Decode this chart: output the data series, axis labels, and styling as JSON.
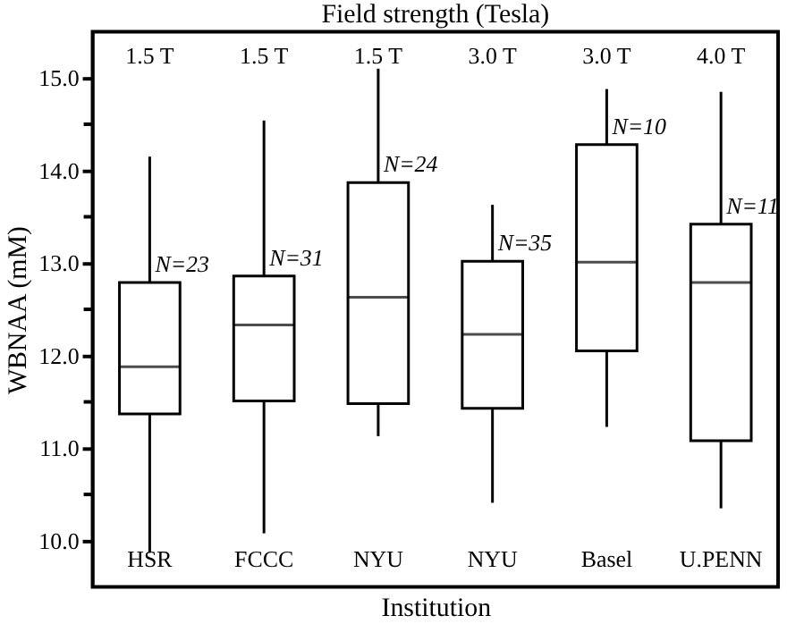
{
  "chart_data": {
    "type": "box",
    "xlabel": "Institution",
    "ylabel": "WBNAA (mM)",
    "x2label": "Field strength (Tesla)",
    "categories": [
      "HSR",
      "FCCC",
      "NYU",
      "NYU",
      "Basel",
      "U.PENN"
    ],
    "boxes": [
      {
        "low": 9.87,
        "q1": 11.37,
        "median": 11.88,
        "q3": 12.79,
        "high": 14.15
      },
      {
        "low": 10.08,
        "q1": 11.51,
        "median": 12.33,
        "q3": 12.86,
        "high": 14.54
      },
      {
        "low": 11.13,
        "q1": 11.48,
        "median": 12.63,
        "q3": 13.87,
        "high": 15.1
      },
      {
        "low": 10.41,
        "q1": 11.43,
        "median": 12.23,
        "q3": 13.02,
        "high": 13.63
      },
      {
        "low": 11.23,
        "q1": 12.05,
        "median": 13.01,
        "q3": 14.28,
        "high": 14.88
      },
      {
        "low": 10.35,
        "q1": 11.08,
        "median": 12.79,
        "q3": 13.42,
        "high": 14.85
      }
    ],
    "color": "#000000",
    "ylim": [
      9.5,
      15.5
    ],
    "yticks": [
      {
        "value": 10,
        "label": "10.0"
      },
      {
        "value": 10.5,
        "label": null
      },
      {
        "value": 11,
        "label": "11.0"
      },
      {
        "value": 11.5,
        "label": null
      },
      {
        "value": 12,
        "label": "12.0"
      },
      {
        "value": 12.5,
        "label": null
      },
      {
        "value": 13,
        "label": "13.0"
      },
      {
        "value": 13.5,
        "label": null
      },
      {
        "value": 14,
        "label": "14.0"
      },
      {
        "value": 14.5,
        "label": null
      },
      {
        "value": 15,
        "label": "15.0"
      }
    ],
    "annotations": [
      "N=23",
      "N=31",
      "N=24",
      "N=35",
      "N=10",
      "N=11",
      "1.5 T",
      "1.5 T",
      "1.5 T",
      "3.0 T",
      "3.0 T",
      "4.0 T"
    ],
    "grid": false
  }
}
